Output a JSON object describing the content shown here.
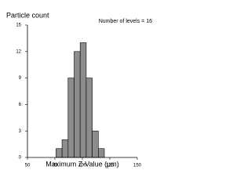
{
  "chart_data": {
    "type": "histogram",
    "y_label": "Particle count",
    "annotation": "Number of levels = 16",
    "x_label": "Maximum Z-Value (µm)",
    "bins": [
      76,
      81.5,
      87,
      92.5,
      98,
      103.5,
      109,
      114.5,
      120
    ],
    "values": [
      1,
      2,
      9,
      12,
      13,
      9,
      3,
      1
    ],
    "color": "#8c8c8c",
    "xlim": [
      50,
      150
    ],
    "xticks": [
      50,
      75,
      100,
      125,
      150
    ],
    "ylim": [
      0,
      15
    ],
    "yticks": [
      0,
      3,
      6,
      9,
      12,
      15
    ]
  }
}
